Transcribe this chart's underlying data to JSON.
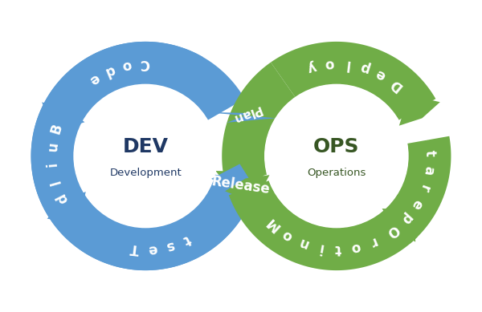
{
  "background_color": "#ffffff",
  "dev_color": "#5b9bd5",
  "ops_color": "#70ad47",
  "dev_text": "DEV",
  "dev_subtext": "Development",
  "ops_text": "OPS",
  "ops_subtext": "Operations",
  "dev_text_color": "#1f3864",
  "ops_text_color": "#375623",
  "label_color": "#ffffff",
  "release_label": "Release",
  "plan_label": "Plan",
  "fig_width": 6.0,
  "fig_height": 3.89,
  "dpi": 100
}
